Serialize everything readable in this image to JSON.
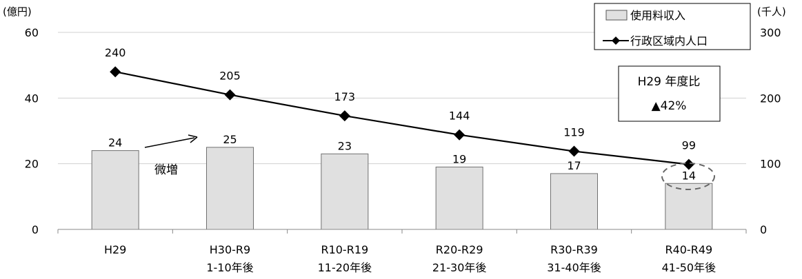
{
  "chart_data": {
    "type": "bar",
    "y_left_unit": "(億円)",
    "y_right_unit": "(千人)",
    "ylim_left": [
      0,
      60
    ],
    "ylim_right": [
      0,
      300
    ],
    "yticks_left": [
      "0",
      "20",
      "40",
      "60"
    ],
    "yticks_right": [
      "0",
      "100",
      "200",
      "300"
    ],
    "categories": [
      {
        "line1": "H29",
        "line2": ""
      },
      {
        "line1": "H30-R9",
        "line2": "1-10年後"
      },
      {
        "line1": "R10-R19",
        "line2": "11-20年後"
      },
      {
        "line1": "R20-R29",
        "line2": "21-30年後"
      },
      {
        "line1": "R30-R39",
        "line2": "31-40年後"
      },
      {
        "line1": "R40-R49",
        "line2": "41-50年後"
      }
    ],
    "series": [
      {
        "name": "使用料収入",
        "type": "bar",
        "axis": "left",
        "values": [
          24,
          25,
          23,
          19,
          17,
          14
        ],
        "color": "#e0e0e0"
      },
      {
        "name": "行政区域内人口",
        "type": "line",
        "axis": "right",
        "values": [
          240,
          205,
          173,
          144,
          119,
          99
        ],
        "color": "#000000"
      }
    ],
    "grid": true,
    "legend_position": "top-right",
    "annotations": {
      "increase_label": "微増",
      "ratio_box_line1": "H29 年度比",
      "ratio_box_line2": "▲42%"
    }
  }
}
